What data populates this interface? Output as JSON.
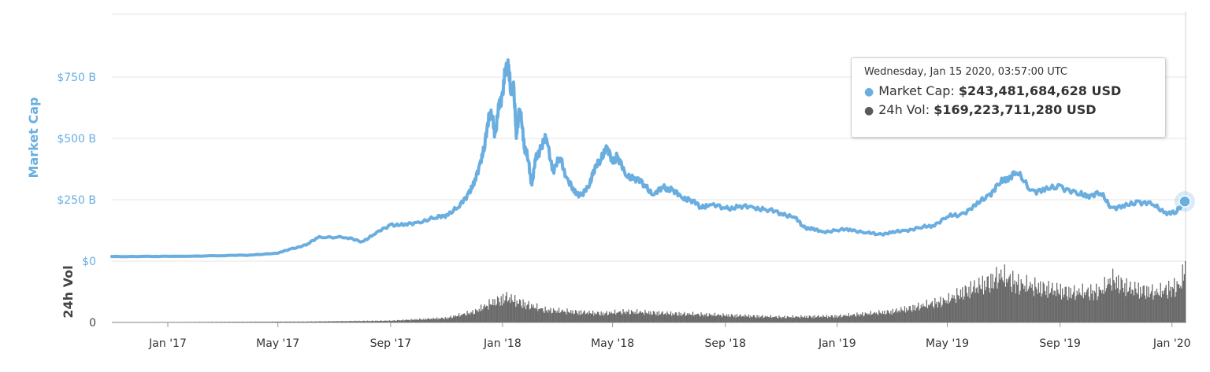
{
  "chart_data": [
    {
      "type": "line",
      "ylabel": "Market Cap",
      "y_tick_labels": [
        "$0",
        "$250 B",
        "$500 B",
        "$750 B"
      ],
      "y_ticks": [
        0,
        250,
        500,
        750
      ],
      "ylim": [
        0,
        1000
      ],
      "x_tick_labels": [
        "Jan '17",
        "May '17",
        "Sep '17",
        "Jan '18",
        "May '18",
        "Sep '18",
        "Jan '19",
        "May '19",
        "Sep '19",
        "Jan '20"
      ],
      "x_tick_dates": [
        "2017-01-01",
        "2017-05-01",
        "2017-09-01",
        "2018-01-01",
        "2018-05-01",
        "2018-09-01",
        "2019-01-01",
        "2019-05-01",
        "2019-09-01",
        "2020-01-01"
      ],
      "xlim": [
        "2016-11-01",
        "2020-01-15"
      ],
      "grid": true,
      "color": "#6aaee0",
      "series": [
        {
          "x": [
            "2016-11-01",
            "2016-12-15",
            "2017-01-15",
            "2017-03-01",
            "2017-04-01",
            "2017-05-01",
            "2017-05-15",
            "2017-06-01",
            "2017-06-15",
            "2017-07-15",
            "2017-08-01",
            "2017-08-15",
            "2017-09-01",
            "2017-09-15",
            "2017-10-01",
            "2017-10-20",
            "2017-11-01",
            "2017-11-15",
            "2017-11-25",
            "2017-12-01",
            "2017-12-08",
            "2017-12-12",
            "2017-12-17",
            "2017-12-21",
            "2017-12-24",
            "2017-12-28",
            "2018-01-01",
            "2018-01-04",
            "2018-01-07",
            "2018-01-10",
            "2018-01-13",
            "2018-01-16",
            "2018-01-19",
            "2018-01-22",
            "2018-01-25",
            "2018-01-29",
            "2018-02-02",
            "2018-02-06",
            "2018-02-12",
            "2018-02-18",
            "2018-02-25",
            "2018-03-05",
            "2018-03-12",
            "2018-03-20",
            "2018-03-28",
            "2018-04-05",
            "2018-04-10",
            "2018-04-18",
            "2018-04-24",
            "2018-05-01",
            "2018-05-06",
            "2018-05-15",
            "2018-05-25",
            "2018-06-05",
            "2018-06-15",
            "2018-06-25",
            "2018-07-05",
            "2018-07-15",
            "2018-07-25",
            "2018-08-05",
            "2018-08-15",
            "2018-09-01",
            "2018-09-15",
            "2018-10-01",
            "2018-10-15",
            "2018-11-01",
            "2018-11-15",
            "2018-11-25",
            "2018-12-05",
            "2018-12-15",
            "2019-01-01",
            "2019-01-15",
            "2019-02-01",
            "2019-02-15",
            "2019-03-01",
            "2019-03-15",
            "2019-04-01",
            "2019-04-15",
            "2019-05-01",
            "2019-05-15",
            "2019-06-01",
            "2019-06-15",
            "2019-06-26",
            "2019-07-05",
            "2019-07-15",
            "2019-08-01",
            "2019-08-15",
            "2019-09-01",
            "2019-09-20",
            "2019-10-01",
            "2019-10-15",
            "2019-10-27",
            "2019-11-10",
            "2019-11-25",
            "2019-12-10",
            "2019-12-25",
            "2020-01-05",
            "2020-01-15"
          ],
          "values": [
            19,
            19,
            20,
            22,
            25,
            32,
            50,
            65,
            100,
            95,
            80,
            110,
            150,
            145,
            160,
            175,
            190,
            220,
            280,
            310,
            410,
            450,
            600,
            580,
            520,
            620,
            690,
            760,
            820,
            680,
            730,
            500,
            620,
            560,
            470,
            410,
            310,
            410,
            470,
            500,
            370,
            420,
            340,
            280,
            270,
            300,
            370,
            410,
            470,
            400,
            430,
            350,
            340,
            310,
            270,
            300,
            290,
            260,
            250,
            220,
            230,
            215,
            220,
            220,
            210,
            195,
            180,
            140,
            130,
            120,
            125,
            130,
            115,
            110,
            115,
            125,
            135,
            145,
            180,
            190,
            225,
            270,
            310,
            340,
            360,
            290,
            285,
            310,
            270,
            270,
            275,
            220,
            220,
            245,
            230,
            200,
            195,
            243
          ]
        }
      ]
    },
    {
      "type": "bar",
      "ylabel": "24h Vol",
      "y_tick_labels": [
        "0"
      ],
      "y_ticks": [
        0
      ],
      "color": "#6a6a6a",
      "series": [
        {
          "x": [
            "2016-11-01",
            "2017-06-01",
            "2017-09-01",
            "2017-11-01",
            "2017-12-01",
            "2017-12-20",
            "2018-01-05",
            "2018-01-20",
            "2018-02-15",
            "2018-03-15",
            "2018-04-20",
            "2018-05-15",
            "2018-07-01",
            "2018-09-01",
            "2018-11-01",
            "2019-01-01",
            "2019-03-01",
            "2019-04-01",
            "2019-05-01",
            "2019-05-20",
            "2019-06-15",
            "2019-06-28",
            "2019-07-20",
            "2019-08-15",
            "2019-09-15",
            "2019-10-15",
            "2019-10-27",
            "2019-11-15",
            "2019-12-15",
            "2020-01-10",
            "2020-01-15"
          ],
          "values": [
            0.2,
            1,
            2,
            5,
            12,
            22,
            28,
            22,
            14,
            12,
            10,
            12,
            10,
            8,
            6,
            7,
            12,
            18,
            25,
            35,
            45,
            52,
            42,
            38,
            33,
            35,
            48,
            38,
            33,
            42,
            62
          ]
        }
      ]
    }
  ],
  "tooltip": {
    "date": "Wednesday, Jan 15 2020, 03:57:00 UTC",
    "market_cap_label": "Market Cap:",
    "market_cap_value": "$243,481,684,628 USD",
    "volume_label": "24h Vol:",
    "volume_value": "$169,223,711,280 USD",
    "market_cap_color": "#6aaee0",
    "volume_color": "#5a5a5a"
  }
}
